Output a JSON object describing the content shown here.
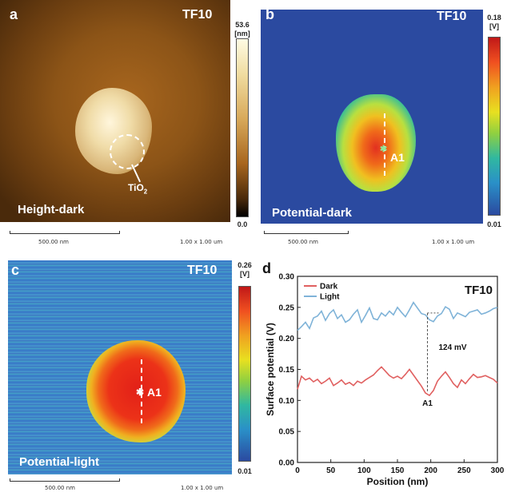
{
  "panels": {
    "a": {
      "label": "a",
      "sample": "TF10",
      "caption": "Height-dark",
      "annotation_main": "TiO",
      "annotation_sub": "2",
      "cbar_max": "53.6",
      "cbar_unit": "[nm]",
      "cbar_min": "0.0",
      "scale_left": "500.00 nm",
      "scale_right": "1.00 x 1.00 um"
    },
    "b": {
      "label": "b",
      "sample": "TF10",
      "caption": "Potential-dark",
      "point": "A1",
      "cbar_max": "0.18",
      "cbar_unit": "[V]",
      "cbar_min": "0.01",
      "scale_left": "500.00 nm",
      "scale_right": "1.00 x 1.00 um"
    },
    "c": {
      "label": "c",
      "sample": "TF10",
      "caption": "Potential-light",
      "point": "A1",
      "cbar_max": "0.26",
      "cbar_unit": "[V]",
      "cbar_min": "0.01",
      "scale_left": "500.00 nm",
      "scale_right": "1.00 x 1.00 um"
    },
    "d": {
      "label": "d"
    }
  },
  "colors": {
    "dark_series": "#e06060",
    "light_series": "#7fb3d8",
    "jet_low": "#2b4aa0"
  },
  "chart_data": {
    "type": "line",
    "title": "TF10",
    "xlabel": "Position (nm)",
    "ylabel": "Surface potential (V)",
    "xlim": [
      0,
      300
    ],
    "ylim": [
      0.0,
      0.3
    ],
    "xticks": [
      0,
      50,
      100,
      150,
      200,
      250,
      300
    ],
    "yticks": [
      0.0,
      0.05,
      0.1,
      0.15,
      0.2,
      0.25,
      0.3
    ],
    "ytick_labels": [
      "0.00",
      "0.05",
      "0.10",
      "0.15",
      "0.20",
      "0.25",
      "0.30"
    ],
    "legend_position": "top-left",
    "annotation": "124 mV",
    "marker_label": "A1",
    "marker_x": 195,
    "series": [
      {
        "name": "Dark",
        "x": [
          0,
          6,
          12,
          18,
          24,
          30,
          36,
          42,
          48,
          54,
          60,
          66,
          72,
          78,
          84,
          90,
          96,
          102,
          108,
          114,
          120,
          126,
          132,
          138,
          144,
          150,
          156,
          162,
          168,
          174,
          180,
          186,
          192,
          198,
          204,
          210,
          216,
          222,
          228,
          234,
          240,
          246,
          252,
          258,
          264,
          270,
          276,
          282,
          288,
          294,
          300
        ],
        "values": [
          0.118,
          0.139,
          0.133,
          0.136,
          0.13,
          0.134,
          0.127,
          0.131,
          0.136,
          0.124,
          0.128,
          0.133,
          0.126,
          0.129,
          0.124,
          0.131,
          0.128,
          0.133,
          0.137,
          0.141,
          0.148,
          0.154,
          0.147,
          0.14,
          0.136,
          0.139,
          0.135,
          0.142,
          0.15,
          0.141,
          0.132,
          0.123,
          0.112,
          0.108,
          0.116,
          0.131,
          0.139,
          0.146,
          0.137,
          0.127,
          0.121,
          0.133,
          0.127,
          0.135,
          0.142,
          0.137,
          0.138,
          0.14,
          0.137,
          0.134,
          0.128
        ]
      },
      {
        "name": "Light",
        "x": [
          0,
          6,
          12,
          18,
          24,
          30,
          36,
          42,
          48,
          54,
          60,
          66,
          72,
          78,
          84,
          90,
          96,
          102,
          108,
          114,
          120,
          126,
          132,
          138,
          144,
          150,
          156,
          162,
          168,
          174,
          180,
          186,
          192,
          198,
          204,
          210,
          216,
          222,
          228,
          234,
          240,
          246,
          252,
          258,
          264,
          270,
          276,
          282,
          288,
          294,
          300
        ],
        "values": [
          0.213,
          0.219,
          0.226,
          0.216,
          0.233,
          0.236,
          0.244,
          0.229,
          0.24,
          0.246,
          0.232,
          0.238,
          0.226,
          0.23,
          0.239,
          0.246,
          0.226,
          0.237,
          0.249,
          0.232,
          0.23,
          0.241,
          0.236,
          0.244,
          0.238,
          0.25,
          0.242,
          0.235,
          0.246,
          0.258,
          0.249,
          0.24,
          0.238,
          0.23,
          0.227,
          0.236,
          0.24,
          0.251,
          0.247,
          0.232,
          0.241,
          0.238,
          0.235,
          0.242,
          0.244,
          0.246,
          0.239,
          0.241,
          0.244,
          0.248,
          0.25
        ]
      }
    ]
  }
}
